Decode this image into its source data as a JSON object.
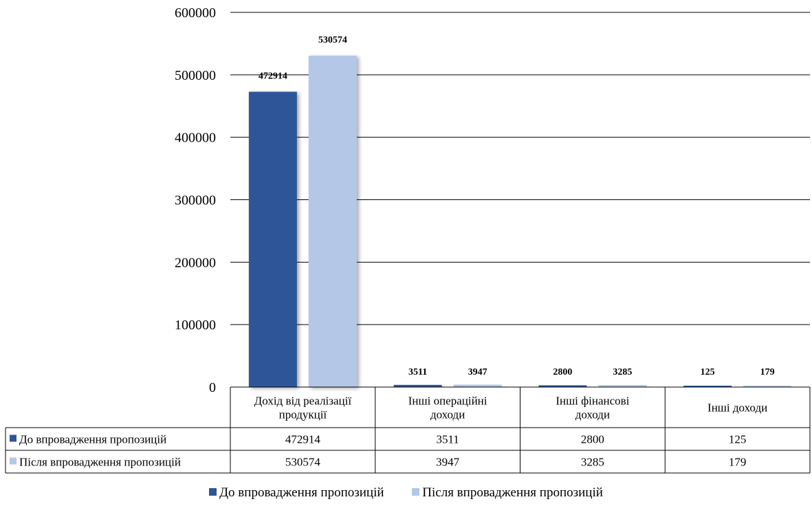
{
  "chart_data": {
    "type": "bar",
    "categories": [
      [
        "Дохід від реалізації",
        "продукції"
      ],
      [
        "Інші операційні",
        "доходи"
      ],
      [
        "Інші фінансові",
        "доходи"
      ],
      [
        "Інші доходи"
      ]
    ],
    "series": [
      {
        "name": "До впровадження пропозицій",
        "values": [
          472914,
          3511,
          2800,
          125
        ],
        "color": "#2F5597"
      },
      {
        "name": "Після впровадження пропозицій",
        "values": [
          530574,
          3947,
          3285,
          179
        ],
        "color": "#B4C7E7"
      }
    ],
    "ylim": [
      0,
      600000
    ],
    "yticks": [
      "0",
      "100000",
      "200000",
      "300000",
      "400000",
      "500000",
      "600000"
    ],
    "grid": true,
    "data_table": true,
    "legend_position": "bottom"
  }
}
